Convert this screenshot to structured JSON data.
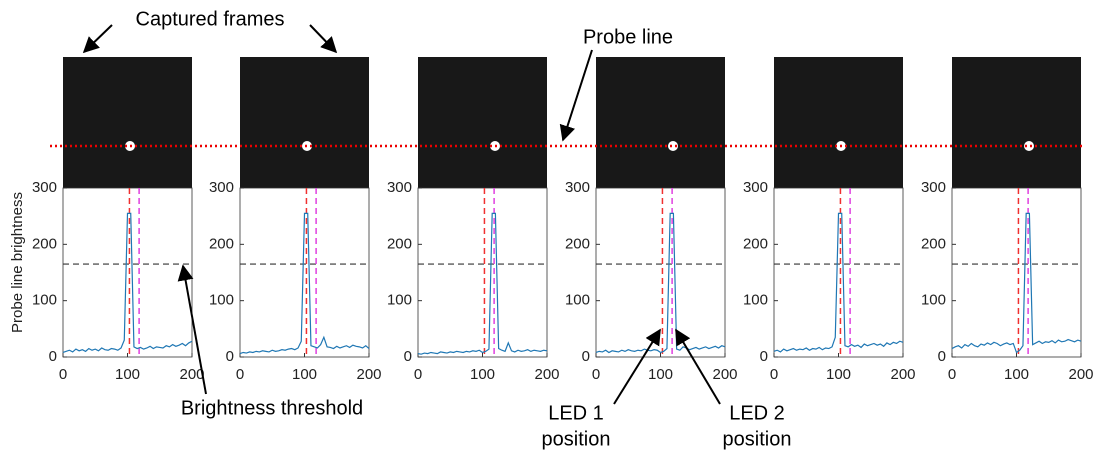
{
  "annotations": {
    "captured_frames": "Captured frames",
    "probe_line": "Probe line",
    "threshold": "Brightness threshold",
    "led1": [
      "LED 1",
      "position"
    ],
    "led2": [
      "LED 2",
      "position"
    ]
  },
  "chart_data": [
    {
      "type": "line",
      "ylabel": "Probe line brightness",
      "x": [
        0,
        5,
        10,
        15,
        20,
        25,
        30,
        35,
        40,
        45,
        50,
        55,
        60,
        65,
        70,
        75,
        80,
        85,
        90,
        95,
        100,
        105,
        110,
        115,
        120,
        125,
        130,
        135,
        140,
        145,
        150,
        155,
        160,
        165,
        170,
        175,
        180,
        185,
        190,
        195,
        200
      ],
      "series": [
        {
          "color": "#1f77b4",
          "values": [
            8,
            10,
            12,
            9,
            14,
            11,
            13,
            10,
            15,
            12,
            14,
            11,
            16,
            13,
            12,
            15,
            14,
            12,
            16,
            30,
            255,
            255,
            18,
            15,
            17,
            14,
            16,
            19,
            15,
            18,
            17,
            16,
            20,
            18,
            22,
            19,
            21,
            24,
            20,
            25,
            28
          ]
        }
      ],
      "threshold": 165,
      "led1": 103,
      "led2": 118,
      "xlim": [
        0,
        200
      ],
      "ylim": [
        0,
        300
      ],
      "xticks": [
        0,
        100,
        200
      ],
      "yticks": [
        0,
        100,
        200,
        300
      ]
    },
    {
      "type": "line",
      "x": [
        0,
        5,
        10,
        15,
        20,
        25,
        30,
        35,
        40,
        45,
        50,
        55,
        60,
        65,
        70,
        75,
        80,
        85,
        90,
        95,
        100,
        105,
        110,
        115,
        120,
        125,
        130,
        135,
        140,
        145,
        150,
        155,
        160,
        165,
        170,
        175,
        180,
        185,
        190,
        195,
        200
      ],
      "series": [
        {
          "color": "#1f77b4",
          "values": [
            6,
            8,
            7,
            9,
            8,
            10,
            9,
            11,
            10,
            9,
            12,
            10,
            11,
            13,
            12,
            14,
            15,
            13,
            16,
            28,
            255,
            255,
            20,
            18,
            16,
            22,
            35,
            18,
            17,
            15,
            19,
            16,
            18,
            20,
            17,
            21,
            19,
            18,
            16,
            20,
            15
          ]
        }
      ],
      "threshold": 165,
      "led1": 103,
      "led2": 118,
      "xlim": [
        0,
        200
      ],
      "ylim": [
        0,
        300
      ],
      "xticks": [
        0,
        100,
        200
      ],
      "yticks": [
        0,
        100,
        200,
        300
      ]
    },
    {
      "type": "line",
      "x": [
        0,
        5,
        10,
        15,
        20,
        25,
        30,
        35,
        40,
        45,
        50,
        55,
        60,
        65,
        70,
        75,
        80,
        85,
        90,
        95,
        100,
        105,
        110,
        115,
        120,
        125,
        130,
        135,
        140,
        145,
        150,
        155,
        160,
        165,
        170,
        175,
        180,
        185,
        190,
        195,
        200
      ],
      "series": [
        {
          "color": "#1f77b4",
          "values": [
            6,
            5,
            7,
            6,
            8,
            7,
            6,
            9,
            8,
            7,
            9,
            8,
            10,
            9,
            8,
            10,
            9,
            11,
            10,
            12,
            8,
            10,
            14,
            255,
            255,
            15,
            12,
            10,
            25,
            11,
            9,
            12,
            10,
            11,
            13,
            10,
            12,
            11,
            10,
            12,
            11
          ]
        }
      ],
      "threshold": 165,
      "led1": 103,
      "led2": 118,
      "xlim": [
        0,
        200
      ],
      "ylim": [
        0,
        300
      ],
      "xticks": [
        0,
        100,
        200
      ],
      "yticks": [
        0,
        100,
        200,
        300
      ]
    },
    {
      "type": "line",
      "x": [
        0,
        5,
        10,
        15,
        20,
        25,
        30,
        35,
        40,
        45,
        50,
        55,
        60,
        65,
        70,
        75,
        80,
        85,
        90,
        95,
        100,
        105,
        110,
        115,
        120,
        125,
        130,
        135,
        140,
        145,
        150,
        155,
        160,
        165,
        170,
        175,
        180,
        185,
        190,
        195,
        200
      ],
      "series": [
        {
          "color": "#1f77b4",
          "values": [
            8,
            10,
            9,
            12,
            8,
            11,
            10,
            9,
            12,
            10,
            13,
            11,
            10,
            12,
            11,
            14,
            12,
            11,
            13,
            12,
            8,
            10,
            15,
            255,
            255,
            14,
            12,
            18,
            16,
            13,
            15,
            17,
            14,
            16,
            18,
            15,
            17,
            19,
            16,
            20,
            18
          ]
        }
      ],
      "threshold": 165,
      "led1": 103,
      "led2": 118,
      "xlim": [
        0,
        200
      ],
      "ylim": [
        0,
        300
      ],
      "xticks": [
        0,
        100,
        200
      ],
      "yticks": [
        0,
        100,
        200,
        300
      ]
    },
    {
      "type": "line",
      "x": [
        0,
        5,
        10,
        15,
        20,
        25,
        30,
        35,
        40,
        45,
        50,
        55,
        60,
        65,
        70,
        75,
        80,
        85,
        90,
        95,
        100,
        105,
        110,
        115,
        120,
        125,
        130,
        135,
        140,
        145,
        150,
        155,
        160,
        165,
        170,
        175,
        180,
        185,
        190,
        195,
        200
      ],
      "series": [
        {
          "color": "#1f77b4",
          "values": [
            10,
            12,
            9,
            14,
            11,
            13,
            15,
            12,
            14,
            13,
            16,
            12,
            15,
            14,
            17,
            13,
            16,
            15,
            18,
            35,
            255,
            255,
            20,
            18,
            22,
            19,
            21,
            17,
            23,
            20,
            22,
            24,
            21,
            23,
            19,
            25,
            22,
            26,
            24,
            28,
            26
          ]
        }
      ],
      "threshold": 165,
      "led1": 103,
      "led2": 118,
      "xlim": [
        0,
        200
      ],
      "ylim": [
        0,
        300
      ],
      "xticks": [
        0,
        100,
        200
      ],
      "yticks": [
        0,
        100,
        200,
        300
      ]
    },
    {
      "type": "line",
      "x": [
        0,
        5,
        10,
        15,
        20,
        25,
        30,
        35,
        40,
        45,
        50,
        55,
        60,
        65,
        70,
        75,
        80,
        85,
        90,
        95,
        100,
        105,
        110,
        115,
        120,
        125,
        130,
        135,
        140,
        145,
        150,
        155,
        160,
        165,
        170,
        175,
        180,
        185,
        190,
        195,
        200
      ],
      "series": [
        {
          "color": "#1f77b4",
          "values": [
            15,
            18,
            20,
            16,
            22,
            19,
            24,
            20,
            18,
            23,
            21,
            25,
            22,
            26,
            24,
            20,
            23,
            25,
            22,
            24,
            8,
            12,
            20,
            255,
            255,
            22,
            25,
            28,
            24,
            27,
            26,
            29,
            25,
            30,
            27,
            28,
            31,
            29,
            27,
            30,
            28
          ]
        }
      ],
      "threshold": 165,
      "led1": 103,
      "led2": 118,
      "xlim": [
        0,
        200
      ],
      "ylim": [
        0,
        300
      ],
      "xticks": [
        0,
        100,
        200
      ],
      "yticks": [
        0,
        100,
        200,
        300
      ]
    }
  ]
}
